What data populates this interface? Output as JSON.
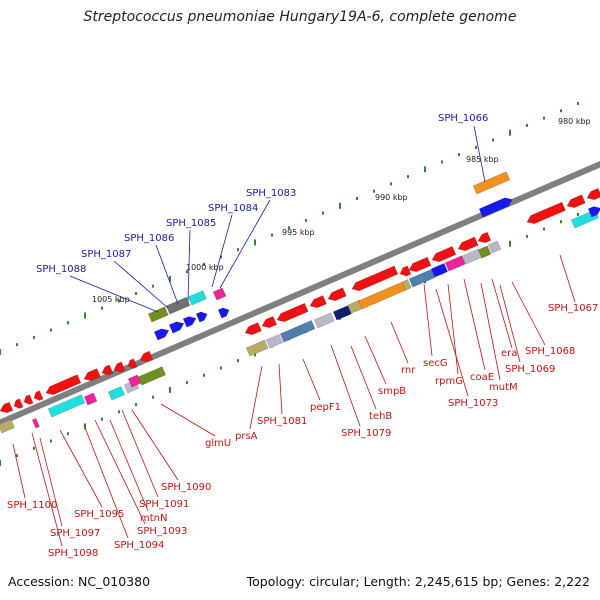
{
  "title": "Streptococcus pneumoniae Hungary19A-6, complete genome",
  "footer": {
    "accession": "Accession: NC_010380",
    "stats": "Topology: circular; Length: 2,245,615 bp; Genes: 2,222"
  },
  "colors": {
    "backbone": "#7f7f7f",
    "tick": "#2f8a2f",
    "forward_label": "#1a1ab4",
    "reverse_label": "#cc1111",
    "red": "#ee1111",
    "blue": "#1818ee",
    "cyan": "#22dddd",
    "magenta": "#ee2299",
    "olive": "#6f8f22",
    "gray": "#b8b8c8",
    "darkgray": "#707070",
    "orange": "#f09020",
    "steel": "#4f7faf",
    "khaki": "#b8ac6a",
    "navy": "#102070"
  },
  "kbp_marks": [
    "980 kbp",
    "985 kbp",
    "990 kbp",
    "995 kbp",
    "1000 kbp",
    "1005 kbp"
  ],
  "forward_gene_labels": [
    "SPH_1066",
    "SPH_1083",
    "SPH_1084",
    "SPH_1085",
    "SPH_1086",
    "SPH_1087",
    "SPH_1088"
  ],
  "reverse_gene_labels": [
    "SPH_1067",
    "SPH_1068",
    "SPH_1069",
    "era",
    "mutM",
    "coaE",
    "rpmG",
    "SPH_1073",
    "secG",
    "rnr",
    "smpB",
    "tehB",
    "SPH_1079",
    "pepF1",
    "SPH_1081",
    "prsA",
    "glmU",
    "SPH_1090",
    "SPH_1091",
    "mtnN",
    "SPH_1093",
    "SPH_1094",
    "SPH_1095",
    "SPH_1097",
    "SPH_1098",
    "SPH_1100"
  ]
}
